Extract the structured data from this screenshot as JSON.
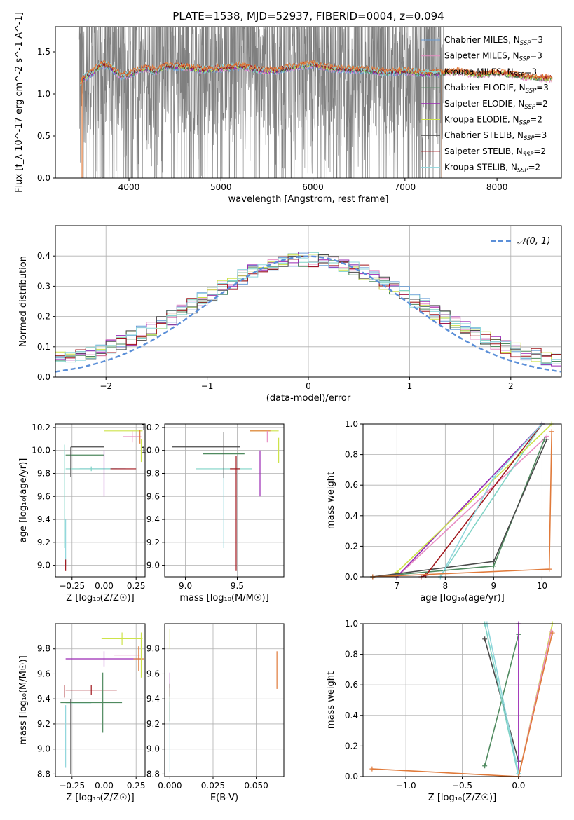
{
  "colors": {
    "Chabrier MILES": "#6a9fd8",
    "Salpeter MILES": "#e88fc4",
    "Kroupa MILES": "#7fd3c6",
    "Chabrier ELODIE": "#4f8a5f",
    "Salpeter ELODIE": "#9b28b5",
    "Kroupa ELODIE": "#cde34a",
    "Chabrier STELIB": "#4a4a4a",
    "Salpeter STELIB": "#a0161c",
    "Kroupa STELIB": "#8fd6dc",
    "fit_overlay": "#e07a3a",
    "data_spectrum": "#7f7f7f",
    "normal_curve": "#5b8fd8"
  },
  "chart_data": [
    {
      "id": "spectrum",
      "type": "line",
      "title": "PLATE=1538, MJD=52937, FIBERID=0004, z=0.094",
      "xlabel": "wavelength [Angstrom, rest frame]",
      "ylabel": "Flux [f_λ 10^-17 erg cm^-2 s^-1 A^-1]",
      "xlim": [
        3200,
        8700
      ],
      "ylim": [
        0,
        1.8
      ],
      "xticks": [
        4000,
        5000,
        6000,
        7000,
        8000
      ],
      "yticks": [
        0.0,
        0.5,
        1.0,
        1.5
      ],
      "grid": false,
      "legend_position": "upper-right",
      "legend": [
        {
          "label": "Chabrier MILES, N_SSP=3",
          "name": "Chabrier MILES",
          "sub": "SSP",
          "n": "3"
        },
        {
          "label": "Salpeter MILES, N_SSP=3",
          "name": "Salpeter MILES",
          "sub": "SSP",
          "n": "3"
        },
        {
          "label": "Kroupa MILES, N_SSP=3",
          "name": "Kroupa MILES",
          "sub": "SSP",
          "n": "3"
        },
        {
          "label": "Chabrier ELODIE, N_SSP=3",
          "name": "Chabrier ELODIE",
          "sub": "SSP",
          "n": "3"
        },
        {
          "label": "Salpeter ELODIE, N_SSP=2",
          "name": "Salpeter ELODIE",
          "sub": "SSP",
          "n": "2"
        },
        {
          "label": "Kroupa ELODIE, N_SSP=2",
          "name": "Kroupa ELODIE",
          "sub": "SSP",
          "n": "2"
        },
        {
          "label": "Chabrier STELIB, N_SSP=3",
          "name": "Chabrier STELIB",
          "sub": "SSP",
          "n": "3"
        },
        {
          "label": "Salpeter STELIB, N_SSP=2",
          "name": "Salpeter STELIB",
          "sub": "SSP",
          "n": "2"
        },
        {
          "label": "Kroupa STELIB, N_SSP=2",
          "name": "Kroupa STELIB",
          "sub": "SSP",
          "n": "2"
        }
      ],
      "model_continuum": {
        "x": [
          3450,
          3500,
          3600,
          3700,
          3800,
          3900,
          4000,
          4100,
          4200,
          4300,
          4400,
          4600,
          4800,
          5000,
          5200,
          5400,
          5600,
          5800,
          6000,
          6200,
          6400,
          6600,
          6800,
          7000,
          7200,
          7400,
          7600,
          7800,
          8000,
          8300,
          8600
        ],
        "y": [
          1.08,
          1.18,
          1.25,
          1.35,
          1.32,
          1.22,
          1.22,
          1.28,
          1.3,
          1.27,
          1.33,
          1.32,
          1.28,
          1.3,
          1.33,
          1.28,
          1.27,
          1.32,
          1.35,
          1.3,
          1.29,
          1.28,
          1.25,
          1.27,
          1.24,
          1.25,
          1.26,
          1.22,
          1.25,
          1.2,
          1.18
        ]
      },
      "data_coverage": [
        3460,
        7420
      ]
    },
    {
      "id": "residuals",
      "type": "step",
      "xlabel": "(data-model)/error",
      "ylabel": "Normed distribution",
      "xlim": [
        -2.5,
        2.5
      ],
      "ylim": [
        0,
        0.5
      ],
      "xticks": [
        -2,
        -1,
        0,
        1,
        2
      ],
      "yticks": [
        0.0,
        0.1,
        0.2,
        0.3,
        0.4
      ],
      "grid": true,
      "legend_position": "upper-right",
      "legend": [
        {
          "label": "𝒩(0, 1)"
        }
      ],
      "normal_curve": {
        "mu": 0,
        "sigma": 1
      }
    },
    {
      "id": "age-vs-z",
      "type": "errorbar",
      "xlabel": "Z [log₁₀(Z/Z☉)]",
      "ylabel": "age [log₁₀(age/yr)]",
      "xlim": [
        -0.38,
        0.32
      ],
      "ylim": [
        8.9,
        10.23
      ],
      "xticks": [
        -0.25,
        0.0,
        0.25
      ],
      "xticklabels": [
        "−0.25",
        "0.00",
        "0.25"
      ],
      "yticks": [
        9.0,
        9.2,
        9.4,
        9.6,
        9.8,
        10.0,
        10.2
      ],
      "grid": true,
      "points": [
        {
          "series": "Chabrier MILES",
          "x": -0.01,
          "y": 9.84,
          "xerr": 0.18,
          "yerr": 0.0
        },
        {
          "series": "Salpeter MILES",
          "x": 0.22,
          "y": 10.12,
          "xerr": 0.07,
          "yerr": 0.05
        },
        {
          "series": "Kroupa MILES",
          "x": -0.1,
          "y": 9.84,
          "xerr": 0.2,
          "yerr": 0.02
        },
        {
          "series": "Chabrier ELODIE",
          "x": -0.15,
          "y": 9.96,
          "xerr": 0.15,
          "yerr": 0.0
        },
        {
          "series": "Salpeter ELODIE",
          "x": 0.0,
          "y": 9.8,
          "xerr": 0.0,
          "yerr": 0.2
        },
        {
          "series": "Kroupa ELODIE",
          "x": 0.15,
          "y": 10.17,
          "xerr": 0.15,
          "yerr": 0.0
        },
        {
          "series": "Chabrier STELIB",
          "x": -0.13,
          "y": 10.03,
          "xerr": 0.13,
          "yerr": 0.0
        },
        {
          "series": "Salpeter STELIB",
          "x": 0.15,
          "y": 9.84,
          "xerr": 0.1,
          "yerr": 0.0
        },
        {
          "series": "Kroupa STELIB",
          "x": -0.3,
          "y": 9.2,
          "xerr": 0.0,
          "yerr": 0.2
        },
        {
          "series": "Salpeter STELIB",
          "x": -0.3,
          "y": 9.0,
          "xerr": 0.0,
          "yerr": 0.05
        },
        {
          "series": "Kroupa ELODIE",
          "x": 0.29,
          "y": 10.0,
          "xerr": 0.0,
          "yerr": 0.1
        },
        {
          "series": "fit_overlay",
          "x": 0.28,
          "y": 10.12,
          "xerr": 0.0,
          "yerr": 0.06
        },
        {
          "series": "Chabrier STELIB",
          "x": -0.26,
          "y": 9.9,
          "xerr": 0.0,
          "yerr": 0.13
        },
        {
          "series": "Kroupa MILES",
          "x": -0.31,
          "y": 9.6,
          "xerr": 0.0,
          "yerr": 0.45
        }
      ]
    },
    {
      "id": "age-vs-mass",
      "type": "errorbar",
      "xlabel": "mass [log₁₀(M/M☉)]",
      "ylabel": "",
      "xlim": [
        8.8,
        9.95
      ],
      "ylim": [
        8.9,
        10.23
      ],
      "xticks": [
        9.0,
        9.5
      ],
      "yticks": [
        9.0,
        9.2,
        9.4,
        9.6,
        9.8,
        10.0,
        10.2
      ],
      "grid": true,
      "points": [
        {
          "series": "Kroupa MILES",
          "x": 9.37,
          "y": 9.84,
          "xerr": 0.27,
          "yerr": 0.0
        },
        {
          "series": "Chabrier ELODIE",
          "x": 9.37,
          "y": 9.97,
          "xerr": 0.2,
          "yerr": 0.0
        },
        {
          "series": "Chabrier STELIB",
          "x": 9.2,
          "y": 10.03,
          "xerr": 0.33,
          "yerr": 0.0
        },
        {
          "series": "Salpeter STELIB",
          "x": 9.48,
          "y": 9.84,
          "xerr": 0.05,
          "yerr": 0.0
        },
        {
          "series": "Kroupa ELODIE",
          "x": 9.76,
          "y": 10.17,
          "xerr": 0.14,
          "yerr": 0.0
        },
        {
          "series": "fit_overlay",
          "x": 9.72,
          "y": 10.17,
          "xerr": 0.1,
          "yerr": 0.0
        },
        {
          "series": "Salpeter ELODIE",
          "x": 9.72,
          "y": 9.8,
          "xerr": 0.0,
          "yerr": 0.2
        },
        {
          "series": "Salpeter STELIB",
          "x": 9.49,
          "y": 9.45,
          "xerr": 0.0,
          "yerr": 0.5
        },
        {
          "series": "Kroupa STELIB",
          "x": 9.37,
          "y": 9.5,
          "xerr": 0.0,
          "yerr": 0.35
        },
        {
          "series": "Chabrier STELIB",
          "x": 9.37,
          "y": 9.96,
          "xerr": 0.0,
          "yerr": 0.2
        },
        {
          "series": "Kroupa ELODIE",
          "x": 9.9,
          "y": 10.0,
          "xerr": 0.0,
          "yerr": 0.11
        },
        {
          "series": "Salpeter MILES",
          "x": 9.79,
          "y": 10.12,
          "xerr": 0.0,
          "yerr": 0.05
        }
      ]
    },
    {
      "id": "cumulative-age",
      "type": "line",
      "xlabel": "age [log₁₀(age/yr)]",
      "ylabel": "mass weight",
      "xlim": [
        6.3,
        10.4
      ],
      "ylim": [
        0,
        1.0
      ],
      "xticks": [
        7,
        8,
        9,
        10
      ],
      "yticks": [
        0.0,
        0.2,
        0.4,
        0.6,
        0.8,
        1.0
      ],
      "grid": true,
      "series": [
        {
          "name": "Chabrier MILES",
          "x": [
            7.0,
            10.0
          ],
          "y": [
            0.0,
            1.0
          ]
        },
        {
          "name": "Salpeter MILES",
          "x": [
            7.0,
            10.1
          ],
          "y": [
            0.0,
            0.92
          ]
        },
        {
          "name": "Kroupa MILES",
          "x": [
            7.9,
            10.0
          ],
          "y": [
            0.0,
            1.0
          ]
        },
        {
          "name": "Chabrier ELODIE",
          "x": [
            6.5,
            9.0,
            10.05
          ],
          "y": [
            0.0,
            0.07,
            0.9
          ]
        },
        {
          "name": "Salpeter ELODIE",
          "x": [
            7.0,
            10.0
          ],
          "y": [
            0.0,
            1.0
          ]
        },
        {
          "name": "Kroupa ELODIE",
          "x": [
            7.0,
            10.2
          ],
          "y": [
            0.03,
            1.0
          ]
        },
        {
          "name": "Chabrier STELIB",
          "x": [
            6.5,
            9.0,
            10.1
          ],
          "y": [
            0.0,
            0.1,
            0.9
          ]
        },
        {
          "name": "Salpeter STELIB",
          "x": [
            7.5,
            7.6,
            10.0
          ],
          "y": [
            0.0,
            0.01,
            1.0
          ]
        },
        {
          "name": "Kroupa STELIB",
          "x": [
            7.9,
            9.0,
            10.0
          ],
          "y": [
            0.0,
            0.65,
            1.0
          ]
        },
        {
          "name": "fit_overlay",
          "x": [
            6.5,
            10.15,
            10.2
          ],
          "y": [
            0.0,
            0.05,
            0.95
          ]
        }
      ]
    },
    {
      "id": "mass-vs-z",
      "type": "errorbar",
      "xlabel": "Z [log₁₀(Z/Z☉)]",
      "ylabel": "mass [log₁₀(M/M☉)]",
      "xlim": [
        -0.38,
        0.32
      ],
      "ylim": [
        8.78,
        10.0
      ],
      "xticks": [
        -0.25,
        0.0,
        0.25
      ],
      "xticklabels": [
        "−0.25",
        "0.00",
        "0.25"
      ],
      "yticks": [
        8.8,
        9.0,
        9.2,
        9.4,
        9.6,
        9.8
      ],
      "grid": true,
      "points": [
        {
          "series": "Kroupa ELODIE",
          "x": 0.14,
          "y": 9.88,
          "xerr": 0.16,
          "yerr": 0.05
        },
        {
          "series": "Salpeter ELODIE",
          "x": 0.0,
          "y": 9.72,
          "xerr": 0.3,
          "yerr": 0.06
        },
        {
          "series": "Salpeter MILES",
          "x": 0.18,
          "y": 9.75,
          "xerr": 0.1,
          "yerr": 0.0
        },
        {
          "series": "fit_overlay",
          "x": 0.27,
          "y": 9.72,
          "xerr": 0.04,
          "yerr": 0.1
        },
        {
          "series": "Salpeter STELIB",
          "x": -0.1,
          "y": 9.47,
          "xerr": 0.2,
          "yerr": 0.04
        },
        {
          "series": "Chabrier ELODIE",
          "x": -0.1,
          "y": 9.37,
          "xerr": 0.24,
          "yerr": 0.0
        },
        {
          "series": "Chabrier ELODIE",
          "x": -0.01,
          "y": 9.37,
          "xerr": 0.0,
          "yerr": 0.24
        },
        {
          "series": "Kroupa MILES",
          "x": -0.2,
          "y": 9.36,
          "xerr": 0.1,
          "yerr": 0.0
        },
        {
          "series": "Kroupa STELIB",
          "x": -0.3,
          "y": 9.1,
          "xerr": 0.0,
          "yerr": 0.25
        },
        {
          "series": "Chabrier STELIB",
          "x": -0.26,
          "y": 9.1,
          "xerr": 0.0,
          "yerr": 0.3
        },
        {
          "series": "Kroupa ELODIE",
          "x": 0.29,
          "y": 9.75,
          "xerr": 0.0,
          "yerr": 0.18
        },
        {
          "series": "Salpeter STELIB",
          "x": -0.31,
          "y": 9.46,
          "xerr": 0.0,
          "yerr": 0.05
        }
      ]
    },
    {
      "id": "mass-vs-ebv",
      "type": "errorbar",
      "xlabel": "E(B-V)",
      "ylabel": "",
      "xlim": [
        -0.003,
        0.066
      ],
      "ylim": [
        8.78,
        10.0
      ],
      "xticks": [
        0.0,
        0.025,
        0.05
      ],
      "xticklabels": [
        "0.000",
        "0.025",
        "0.050"
      ],
      "yticks": [
        8.8,
        9.0,
        9.2,
        9.4,
        9.6,
        9.8
      ],
      "grid": true,
      "points": [
        {
          "series": "Kroupa ELODIE",
          "x": 0.0,
          "y": 9.88,
          "xerr": 0.0,
          "yerr": 0.08
        },
        {
          "series": "Salpeter ELODIE",
          "x": 0.0,
          "y": 9.55,
          "xerr": 0.0,
          "yerr": 0.06
        },
        {
          "series": "Salpeter STELIB",
          "x": 0.0,
          "y": 9.47,
          "xerr": 0.0,
          "yerr": 0.05
        },
        {
          "series": "Kroupa STELIB",
          "x": 0.0,
          "y": 9.1,
          "xerr": 0.0,
          "yerr": 0.28
        },
        {
          "series": "Chabrier ELODIE",
          "x": 0.0,
          "y": 9.37,
          "xerr": 0.0,
          "yerr": 0.15
        },
        {
          "series": "fit_overlay",
          "x": 0.062,
          "y": 9.63,
          "xerr": 0.0,
          "yerr": 0.15
        }
      ]
    },
    {
      "id": "cumulative-z",
      "type": "line",
      "xlabel": "Z [log₁₀(Z/Z☉)]",
      "ylabel": "mass weight",
      "xlim": [
        -1.38,
        0.38
      ],
      "ylim": [
        0,
        1.0
      ],
      "xticks": [
        -1.0,
        -0.5,
        0.0
      ],
      "xticklabels": [
        "−1.0",
        "−0.5",
        "0.0"
      ],
      "yticks": [
        0.0,
        0.2,
        0.4,
        0.6,
        0.8,
        1.0
      ],
      "grid": true,
      "series": [
        {
          "name": "Chabrier STELIB",
          "x": [
            -0.3,
            0.0
          ],
          "y": [
            0.9,
            0.1
          ]
        },
        {
          "name": "Chabrier ELODIE",
          "x": [
            -0.3,
            0.0
          ],
          "y": [
            0.07,
            0.93
          ]
        },
        {
          "name": "Salpeter ELODIE",
          "x": [
            0.0,
            0.0
          ],
          "y": [
            0.0,
            1.0
          ]
        },
        {
          "name": "Kroupa MILES",
          "x": [
            -0.3,
            0.0
          ],
          "y": [
            1.0,
            0.0
          ]
        },
        {
          "name": "Kroupa STELIB",
          "x": [
            -0.28,
            0.0
          ],
          "y": [
            1.0,
            0.02
          ]
        },
        {
          "name": "Kroupa ELODIE",
          "x": [
            0.0,
            0.3
          ],
          "y": [
            0.0,
            1.0
          ]
        },
        {
          "name": "Salpeter MILES",
          "x": [
            0.0,
            0.29
          ],
          "y": [
            0.0,
            0.95
          ]
        },
        {
          "name": "fit_overlay",
          "x": [
            -1.3,
            0.0,
            0.3
          ],
          "y": [
            0.05,
            0.0,
            0.94
          ]
        }
      ]
    }
  ]
}
